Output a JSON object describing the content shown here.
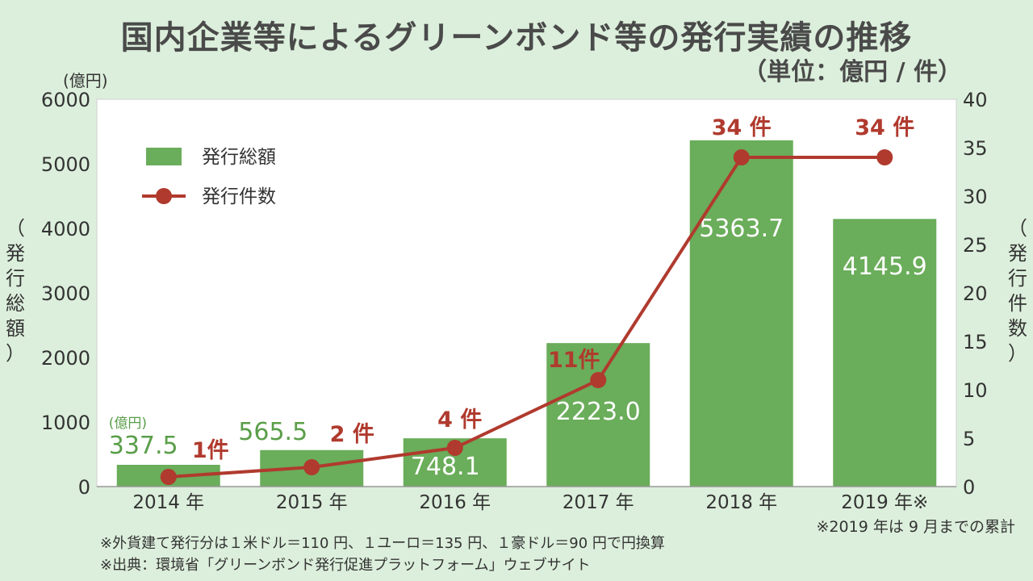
{
  "title": "国内企業等によるグリーンボンド等の発行実績の推移",
  "unit": "（単位：億円 / 件）",
  "left_axis_unit": "(億円)",
  "left_axis_label": [
    "（",
    "発",
    "行",
    "総",
    "額",
    "）"
  ],
  "right_axis_label": [
    "（",
    "発",
    "行",
    "件",
    "数",
    "）"
  ],
  "chart_data": {
    "type": "bar",
    "categories": [
      "2014 年",
      "2015 年",
      "2016 年",
      "2017 年",
      "2018 年",
      "2019 年※"
    ],
    "series": [
      {
        "name": "発行総額",
        "type": "bar",
        "axis": "left",
        "values": [
          337.5,
          565.5,
          748.1,
          2223.0,
          5363.7,
          4145.9
        ],
        "labels": [
          "337.5",
          "565.5",
          "748.1",
          "2223.0",
          "5363.7",
          "4145.9"
        ],
        "color": "#6aad5a"
      },
      {
        "name": "発行件数",
        "type": "line",
        "axis": "right",
        "values": [
          1,
          2,
          4,
          11,
          34,
          34
        ],
        "labels": [
          "1件",
          "2 件",
          "4 件",
          "11件",
          "34 件",
          "34 件"
        ],
        "color": "#b03a2e"
      }
    ],
    "ylim_left": [
      0,
      6000
    ],
    "yticks_left": [
      "0",
      "1000",
      "2000",
      "3000",
      "4000",
      "5000",
      "6000"
    ],
    "ylim_right": [
      0,
      40
    ],
    "yticks_right": [
      "0",
      "5",
      "10",
      "15",
      "20",
      "25",
      "30",
      "35",
      "40"
    ],
    "bar_unit_annotation": "(億円)",
    "legend_placement": "top-left"
  },
  "note_right": "※2019 年は 9 月までの累計",
  "notes": [
    "※外貨建て発行分は１米ドル＝110 円、１ユーロ＝135 円、１豪ドル＝90 円で円換算",
    "※出典：環境省「グリーンボンド発行促進プラットフォーム」ウェブサイト"
  ]
}
